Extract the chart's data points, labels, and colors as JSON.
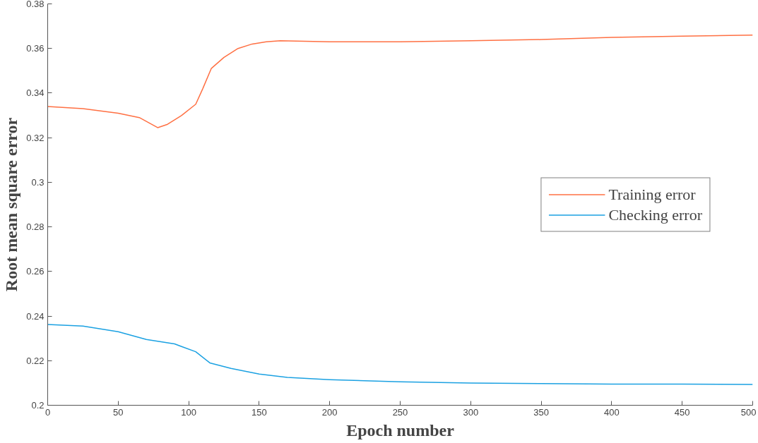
{
  "chart_data": {
    "type": "line",
    "xlabel": "Epoch number",
    "ylabel": "Root mean square error",
    "xlim": [
      0,
      500
    ],
    "xticks": [
      0,
      50,
      100,
      150,
      200,
      250,
      300,
      350,
      400,
      450,
      500
    ],
    "ylim": [
      0.2,
      0.38
    ],
    "yticks": [
      {
        "value": 0.2,
        "label": "0.2"
      },
      0.22,
      0.24,
      0.26,
      0.28,
      {
        "value": 0.3,
        "label": "0.3"
      },
      0.32,
      0.34,
      0.36,
      0.38
    ],
    "grid": false,
    "legend": "right",
    "line_style": "solid",
    "marker": "none",
    "series": [
      {
        "name": "Training error",
        "color": "#ff7043",
        "x": [
          0,
          25,
          50,
          65,
          78,
          85,
          95,
          105,
          110,
          116,
          125,
          135,
          145,
          155,
          165,
          200,
          250,
          300,
          350,
          400,
          450,
          500
        ],
        "values": [
          0.334,
          0.333,
          0.331,
          0.329,
          0.3245,
          0.326,
          0.33,
          0.335,
          0.342,
          0.351,
          0.356,
          0.36,
          0.362,
          0.363,
          0.3635,
          0.363,
          0.363,
          0.3635,
          0.364,
          0.365,
          0.3655,
          0.366
        ]
      },
      {
        "name": "Checking error",
        "color": "#1ba1e2",
        "x": [
          0,
          25,
          50,
          70,
          90,
          105,
          115,
          130,
          150,
          170,
          200,
          250,
          300,
          350,
          400,
          450,
          500
        ],
        "values": [
          0.2362,
          0.2355,
          0.233,
          0.2295,
          0.2275,
          0.224,
          0.219,
          0.2165,
          0.214,
          0.2125,
          0.2115,
          0.2105,
          0.21,
          0.2097,
          0.2095,
          0.2095,
          0.2093
        ]
      }
    ]
  }
}
